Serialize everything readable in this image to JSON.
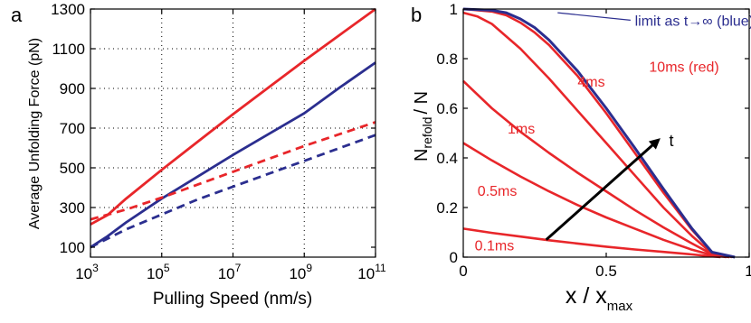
{
  "chart_data": [
    {
      "panel_label": "a",
      "type": "line",
      "xlabel": "Pulling Speed (nm/s)",
      "ylabel": "Average Unfolding Force (pN)",
      "xscale": "log",
      "xlim": [
        1000,
        100000000000
      ],
      "ylim": [
        50,
        1300
      ],
      "grid": true,
      "xticks": [
        {
          "value": 1000,
          "mantissa": "10",
          "exponent": "3"
        },
        {
          "value": 100000,
          "mantissa": "10",
          "exponent": "5"
        },
        {
          "value": 10000000,
          "mantissa": "10",
          "exponent": "7"
        },
        {
          "value": 1000000000,
          "mantissa": "10",
          "exponent": "9"
        },
        {
          "value": 100000000000,
          "mantissa": "10",
          "exponent": "11"
        }
      ],
      "yticks": [
        "100",
        "300",
        "500",
        "700",
        "900",
        "1100",
        "1300"
      ],
      "series": [
        {
          "color": "#e8262a",
          "style": "solid",
          "x": [
            1000,
            3000,
            10000,
            100000,
            1000000,
            10000000,
            100000000,
            1000000000,
            10000000000,
            100000000000
          ],
          "y": [
            215,
            262,
            345,
            490,
            630,
            770,
            905,
            1040,
            1170,
            1300
          ]
        },
        {
          "color": "#2b2e8f",
          "style": "solid",
          "x": [
            1000,
            3000,
            10000,
            100000,
            1000000,
            10000000,
            100000000,
            1000000000,
            10000000000,
            100000000000
          ],
          "y": [
            100,
            155,
            225,
            345,
            455,
            565,
            670,
            775,
            905,
            1030
          ]
        },
        {
          "color": "#e8262a",
          "style": "dashed",
          "x": [
            1000,
            10000,
            100000,
            1000000,
            10000000,
            100000000,
            1000000000,
            10000000000,
            100000000000
          ],
          "y": [
            240,
            290,
            350,
            415,
            480,
            545,
            610,
            670,
            730
          ]
        },
        {
          "color": "#2b2e8f",
          "style": "dashed",
          "x": [
            1000,
            10000,
            100000,
            1000000,
            10000000,
            100000000,
            1000000000,
            10000000000,
            100000000000
          ],
          "y": [
            100,
            190,
            265,
            340,
            405,
            470,
            535,
            600,
            665
          ]
        }
      ]
    },
    {
      "panel_label": "b",
      "type": "line",
      "xlabel_main": "x / x",
      "xlabel_sub": "max",
      "ylabel_main": "N",
      "ylabel_sub": "refold",
      "ylabel_tail": "/ N",
      "xlim": [
        0,
        1
      ],
      "ylim": [
        0,
        1
      ],
      "grid": false,
      "xticks": [
        "0",
        "0.5",
        "1"
      ],
      "yticks": [
        "0",
        "0.2",
        "0.4",
        "0.6",
        "0.8",
        "1"
      ],
      "annotations": [
        {
          "text": "limit as t→∞ (blue)",
          "color": "#2b2e8f",
          "x": 0.6,
          "y": 0.955
        },
        {
          "text": "10ms (red)",
          "color": "#e8262a",
          "x": 0.65,
          "y": 0.77
        },
        {
          "text": "4ms",
          "color": "#e8262a",
          "x": 0.4,
          "y": 0.71
        },
        {
          "text": "1ms",
          "color": "#e8262a",
          "x": 0.155,
          "y": 0.52
        },
        {
          "text": "0.5ms",
          "color": "#e8262a",
          "x": 0.05,
          "y": 0.27
        },
        {
          "text": "0.1ms",
          "color": "#e8262a",
          "x": 0.04,
          "y": 0.05
        },
        {
          "text": "t",
          "color": "#000000",
          "x": 0.72,
          "y": 0.47
        }
      ],
      "arrow": {
        "from": [
          0.29,
          0.07
        ],
        "to": [
          0.68,
          0.47
        ]
      },
      "series": [
        {
          "name": "0.1ms",
          "color": "#e8262a",
          "x": [
            0,
            0.1,
            0.2,
            0.3,
            0.4,
            0.5,
            0.6,
            0.7,
            0.8,
            0.85,
            0.9
          ],
          "y": [
            0.115,
            0.098,
            0.083,
            0.068,
            0.055,
            0.042,
            0.031,
            0.021,
            0.011,
            0.005,
            0.0
          ]
        },
        {
          "name": "0.5ms",
          "color": "#e8262a",
          "x": [
            0,
            0.1,
            0.2,
            0.3,
            0.4,
            0.5,
            0.6,
            0.7,
            0.8,
            0.87,
            0.92
          ],
          "y": [
            0.46,
            0.39,
            0.325,
            0.265,
            0.21,
            0.16,
            0.115,
            0.07,
            0.03,
            0.008,
            0.0
          ]
        },
        {
          "name": "1ms",
          "color": "#e8262a",
          "x": [
            0,
            0.1,
            0.2,
            0.3,
            0.4,
            0.5,
            0.6,
            0.7,
            0.8,
            0.87,
            0.93
          ],
          "y": [
            0.71,
            0.6,
            0.505,
            0.42,
            0.34,
            0.265,
            0.19,
            0.12,
            0.055,
            0.012,
            0.0
          ]
        },
        {
          "name": "4ms",
          "color": "#e8262a",
          "x": [
            0,
            0.05,
            0.1,
            0.2,
            0.3,
            0.4,
            0.5,
            0.6,
            0.7,
            0.8,
            0.87,
            0.93
          ],
          "y": [
            0.985,
            0.97,
            0.94,
            0.84,
            0.72,
            0.59,
            0.46,
            0.33,
            0.2,
            0.085,
            0.015,
            0.0
          ]
        },
        {
          "name": "10ms",
          "color": "#e8262a",
          "x": [
            0,
            0.1,
            0.15,
            0.2,
            0.25,
            0.3,
            0.4,
            0.5,
            0.6,
            0.7,
            0.8,
            0.87,
            0.94
          ],
          "y": [
            1.0,
            0.99,
            0.975,
            0.945,
            0.905,
            0.855,
            0.73,
            0.58,
            0.42,
            0.26,
            0.11,
            0.02,
            0.0
          ]
        },
        {
          "name": "limit",
          "color": "#2b2e8f",
          "x": [
            0,
            0.1,
            0.15,
            0.2,
            0.25,
            0.3,
            0.4,
            0.5,
            0.6,
            0.7,
            0.8,
            0.87,
            0.95
          ],
          "y": [
            1.0,
            0.995,
            0.985,
            0.96,
            0.925,
            0.875,
            0.75,
            0.6,
            0.44,
            0.275,
            0.115,
            0.02,
            0.0
          ]
        }
      ]
    }
  ]
}
